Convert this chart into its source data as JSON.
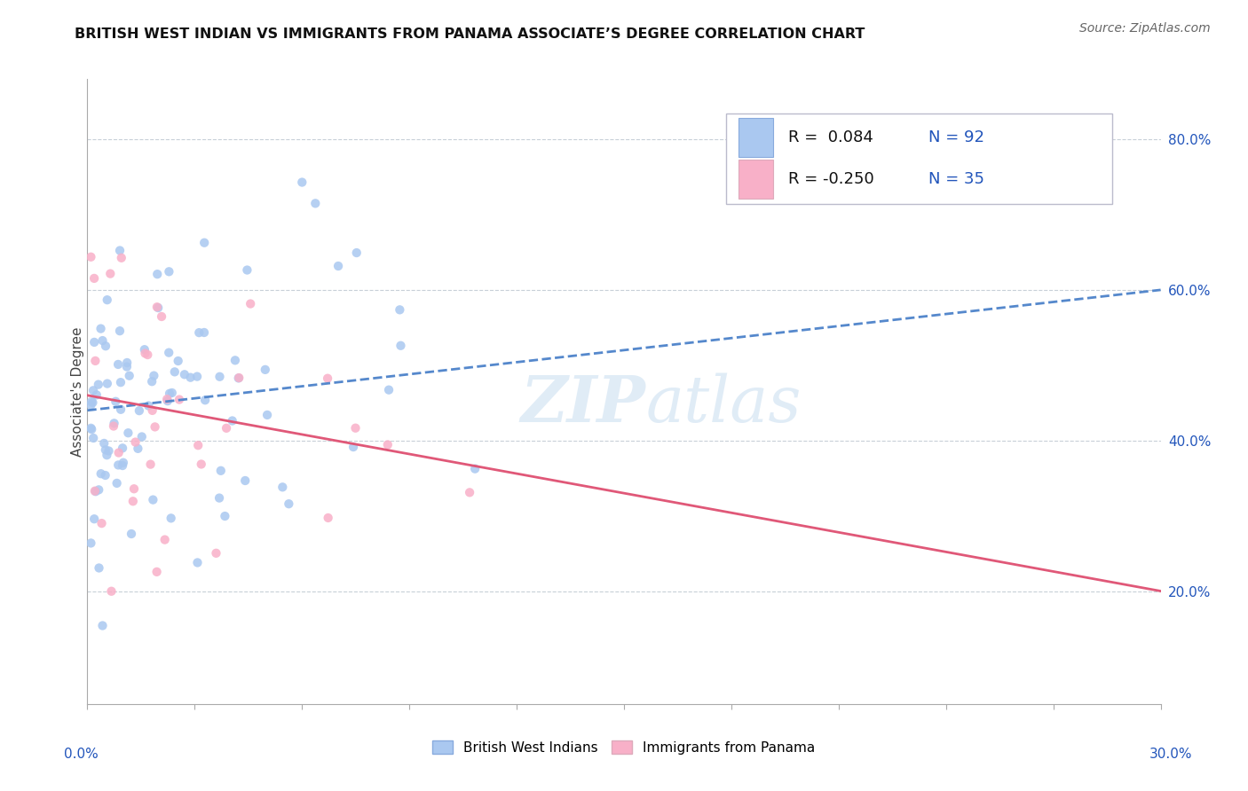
{
  "title": "BRITISH WEST INDIAN VS IMMIGRANTS FROM PANAMA ASSOCIATE’S DEGREE CORRELATION CHART",
  "source": "Source: ZipAtlas.com",
  "ylabel_label": "Associate's Degree",
  "xmin": 0.0,
  "xmax": 0.3,
  "ymin": 0.05,
  "ymax": 0.88,
  "yticks": [
    0.2,
    0.4,
    0.6,
    0.8
  ],
  "ytick_labels": [
    "20.0%",
    "40.0%",
    "60.0%",
    "80.0%"
  ],
  "series1_color": "#aac8f0",
  "series2_color": "#f8b0c8",
  "series1_label": "British West Indians",
  "series2_label": "Immigrants from Panama",
  "trend1_color": "#5588cc",
  "trend2_color": "#e05878",
  "trend1_y0": 0.44,
  "trend1_y1": 0.6,
  "trend2_y0": 0.46,
  "trend2_y1": 0.2,
  "watermark_zip": "ZIP",
  "watermark_atlas": "atlas",
  "background_color": "#ffffff",
  "grid_color": "#c8d0d8",
  "legend_r1_text": "R =  0.084",
  "legend_n1_text": "N = 92",
  "legend_r2_text": "R = -0.250",
  "legend_n2_text": "N = 35",
  "legend_color_blue": "#2255bb",
  "legend_color_pink": "#cc3366",
  "title_fontsize": 11.5,
  "source_fontsize": 10,
  "ytick_fontsize": 11,
  "legend_fontsize": 13
}
